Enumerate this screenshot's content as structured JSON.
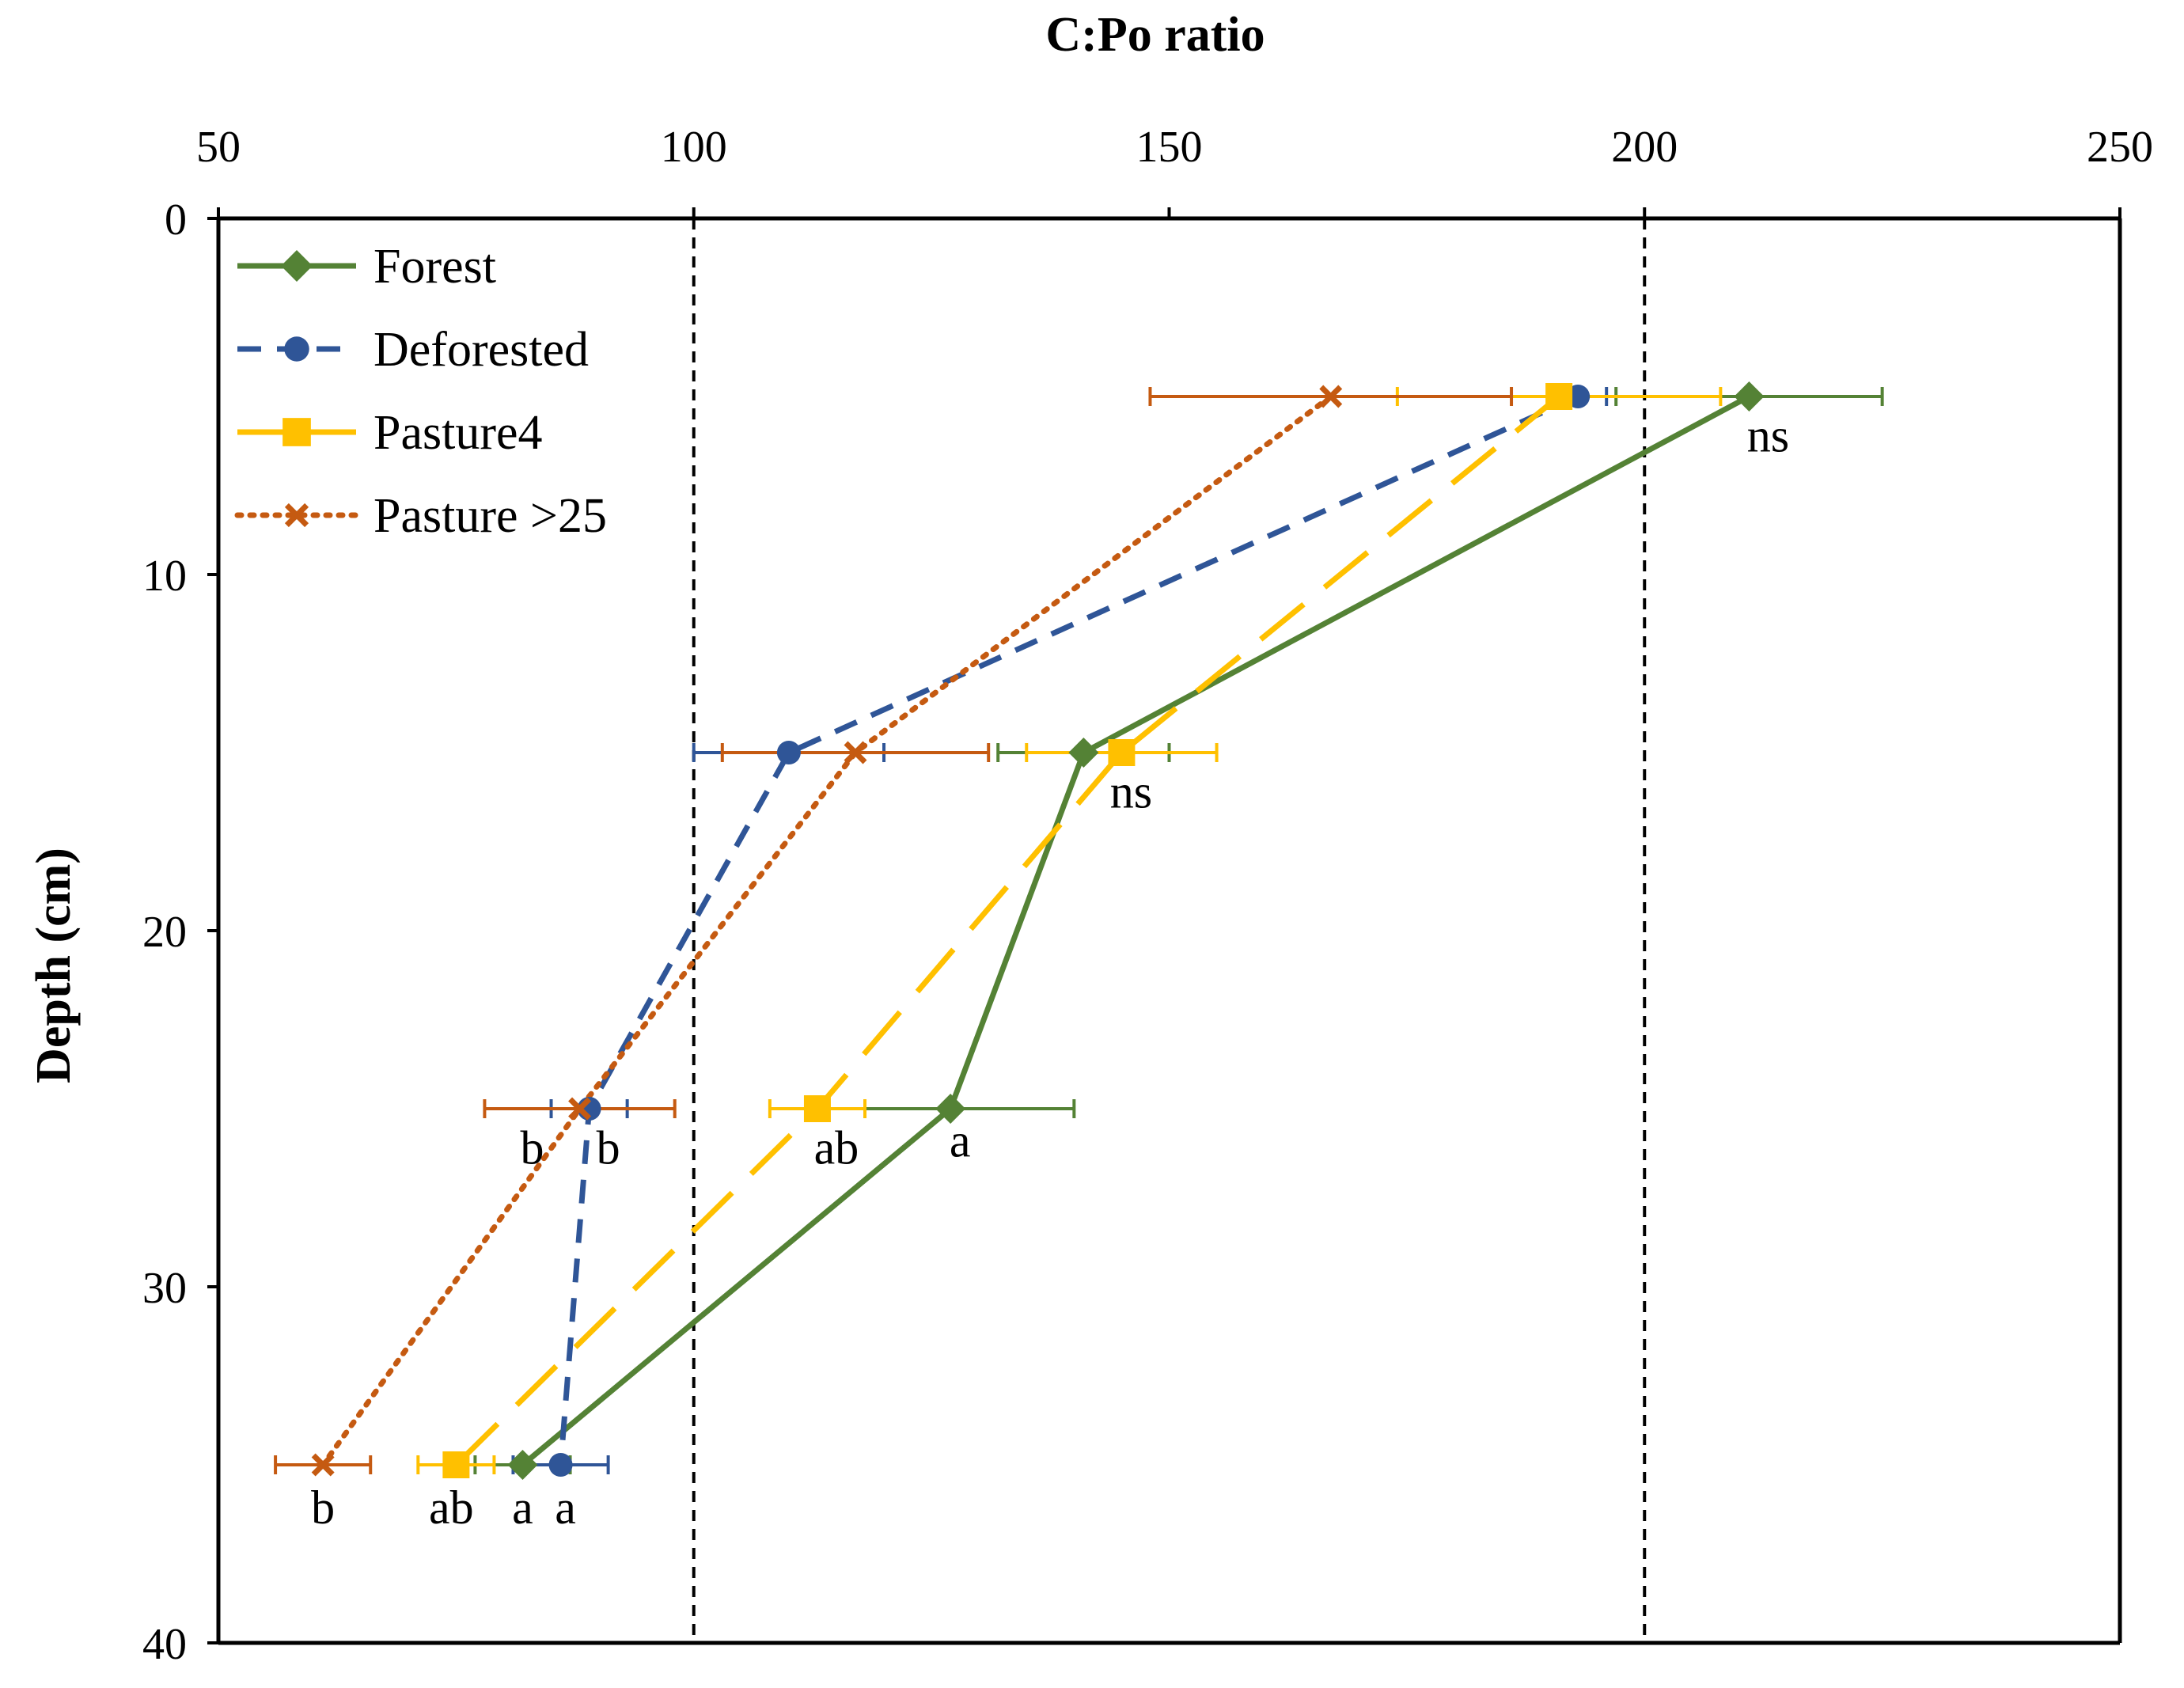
{
  "chart_data": {
    "type": "line",
    "title": "",
    "xlabel": "C:Po ratio",
    "ylabel": "Depth (cm)",
    "xlim": [
      50,
      250
    ],
    "ylim": [
      0,
      40
    ],
    "x_ticks": [
      "50",
      "100",
      "150",
      "200",
      "250"
    ],
    "y_ticks": [
      "0",
      "10",
      "20",
      "30",
      "40"
    ],
    "x_tick_values": [
      50,
      100,
      150,
      200,
      250
    ],
    "y_tick_values": [
      0,
      10,
      20,
      30,
      40
    ],
    "x_axis_position": "top",
    "y_axis_inverted": true,
    "reference_lines_x": [
      100,
      200
    ],
    "legend_position": "top-left",
    "series": [
      {
        "name": "Forest",
        "color": "#548235",
        "line_style": "solid",
        "marker": "diamond",
        "depth": [
          5,
          15,
          25,
          35
        ],
        "ratio": [
          211,
          141,
          127,
          82
        ],
        "error": [
          14,
          9,
          13,
          5
        ]
      },
      {
        "name": "Deforested",
        "color": "#2F5597",
        "line_style": "dashed",
        "marker": "circle",
        "depth": [
          5,
          15,
          25,
          35
        ],
        "ratio": [
          193,
          110,
          89,
          86
        ],
        "error": [
          3,
          10,
          4,
          5
        ]
      },
      {
        "name": "Pasture4",
        "color": "#FFC000",
        "line_style": "long-dash",
        "marker": "square",
        "depth": [
          5,
          15,
          25,
          35
        ],
        "ratio": [
          191,
          145,
          113,
          75
        ],
        "error": [
          17,
          10,
          5,
          4
        ]
      },
      {
        "name": "Pasture >25",
        "color": "#C55A11",
        "line_style": "dotted",
        "marker": "x",
        "depth": [
          5,
          15,
          25,
          35
        ],
        "ratio": [
          167,
          117,
          88,
          61
        ],
        "error": [
          19,
          14,
          10,
          5
        ]
      }
    ],
    "annotations": [
      {
        "text": "ns",
        "x": 213,
        "y": 6.1
      },
      {
        "text": "ns",
        "x": 146,
        "y": 16.1
      },
      {
        "text": "b",
        "x": 83,
        "y": 26.1
      },
      {
        "text": "b",
        "x": 91,
        "y": 26.1
      },
      {
        "text": "ab",
        "x": 115,
        "y": 26.1
      },
      {
        "text": "a",
        "x": 128,
        "y": 25.9
      },
      {
        "text": "b",
        "x": 61,
        "y": 36.2
      },
      {
        "text": "ab",
        "x": 74.5,
        "y": 36.2
      },
      {
        "text": "a",
        "x": 82,
        "y": 36.2
      },
      {
        "text": "a",
        "x": 86.5,
        "y": 36.2
      }
    ]
  }
}
